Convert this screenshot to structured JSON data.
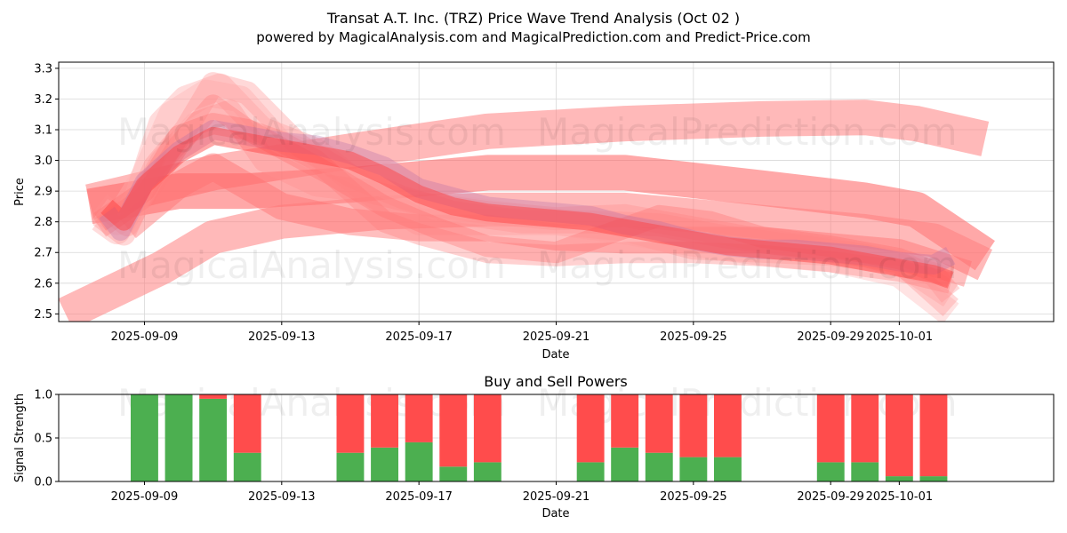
{
  "chart_data": [
    {
      "type": "line",
      "title": "Transat A.T. Inc. (TRZ) Price Wave Trend Analysis (Oct 02 )",
      "subtitle": "powered by MagicalAnalysis.com and MagicalPrediction.com and Predict-Price.com",
      "xlabel": "Date",
      "ylabel": "Price",
      "xlim": [
        -2.5,
        26.5
      ],
      "ylim": [
        2.475,
        3.32
      ],
      "x_ticks": [
        {
          "x": 0,
          "label": "2025-09-09"
        },
        {
          "x": 4,
          "label": "2025-09-13"
        },
        {
          "x": 8,
          "label": "2025-09-17"
        },
        {
          "x": 12,
          "label": "2025-09-21"
        },
        {
          "x": 16,
          "label": "2025-09-25"
        },
        {
          "x": 20,
          "label": "2025-09-29"
        },
        {
          "x": 22,
          "label": "2025-10-01"
        }
      ],
      "y_ticks": [
        2.5,
        2.6,
        2.7,
        2.8,
        2.9,
        3.0,
        3.1,
        3.2,
        3.3
      ],
      "grid": true,
      "series": [
        {
          "name": "upper-band",
          "x": [
            -1.6,
            2,
            6,
            10,
            14,
            18,
            21,
            22.5,
            24.5
          ],
          "values": [
            2.865,
            2.96,
            3.03,
            3.095,
            3.12,
            3.135,
            3.14,
            3.12,
            3.07
          ]
        },
        {
          "name": "middle-band",
          "x": [
            -1.6,
            1,
            3,
            6,
            10,
            14,
            18,
            21,
            22.5,
            24.5
          ],
          "values": [
            2.85,
            2.9,
            2.9,
            2.92,
            2.96,
            2.96,
            2.91,
            2.87,
            2.84,
            2.69
          ]
        },
        {
          "name": "lower-band",
          "x": [
            -2.3,
            0.5,
            2,
            4,
            7,
            10,
            14,
            18,
            21,
            23,
            24.5
          ],
          "values": [
            2.5,
            2.65,
            2.75,
            2.8,
            2.83,
            2.84,
            2.84,
            2.8,
            2.77,
            2.74,
            2.66
          ]
        },
        {
          "name": "mid-lower-band",
          "x": [
            -0.5,
            1,
            2,
            4,
            6,
            8,
            10,
            12,
            14,
            16,
            18,
            20,
            22,
            24
          ],
          "values": [
            2.78,
            2.92,
            2.98,
            2.85,
            2.8,
            2.78,
            2.78,
            2.75,
            2.74,
            2.74,
            2.74,
            2.72,
            2.7,
            2.63
          ]
        },
        {
          "name": "wave-1",
          "x": [
            -1.3,
            -0.8,
            -0.2,
            0.5,
            1.2,
            2.2,
            3.4,
            5,
            6.5,
            8,
            10,
            12,
            14,
            16,
            18,
            20,
            22,
            23.5
          ],
          "values": [
            2.81,
            2.77,
            2.88,
            3.12,
            3.2,
            3.24,
            3.1,
            3.03,
            2.9,
            2.8,
            2.8,
            2.8,
            2.78,
            2.72,
            2.71,
            2.7,
            2.67,
            2.56
          ]
        },
        {
          "name": "wave-2",
          "x": [
            -1.3,
            -0.8,
            0,
            0.8,
            1.8,
            2.8,
            4,
            5.5,
            7,
            8.5,
            10,
            12,
            14,
            16,
            18,
            20,
            22,
            23.5
          ],
          "values": [
            2.84,
            2.8,
            2.95,
            3.15,
            3.22,
            3.2,
            3.05,
            3.0,
            2.92,
            2.85,
            2.83,
            2.8,
            2.77,
            2.73,
            2.7,
            2.68,
            2.63,
            2.5
          ]
        },
        {
          "name": "wave-3",
          "x": [
            -1.3,
            -0.6,
            0.3,
            1.2,
            2,
            3,
            4.5,
            6,
            7.5,
            9,
            11,
            13,
            15,
            17,
            19,
            21,
            23,
            23.5
          ],
          "values": [
            2.82,
            2.76,
            2.98,
            3.1,
            3.25,
            3.22,
            3.05,
            2.95,
            2.88,
            2.83,
            2.8,
            2.8,
            2.79,
            2.75,
            2.72,
            2.69,
            2.63,
            2.56
          ]
        },
        {
          "name": "wave-4",
          "x": [
            -1.3,
            -0.5,
            0.5,
            1.5,
            2.5,
            3.5,
            5,
            6.5,
            8,
            10,
            12,
            14,
            16,
            18,
            20,
            22,
            23.5
          ],
          "values": [
            2.86,
            2.79,
            3.0,
            3.12,
            3.16,
            3.0,
            2.92,
            2.9,
            2.86,
            2.83,
            2.81,
            2.82,
            2.78,
            2.74,
            2.71,
            2.67,
            2.52
          ]
        },
        {
          "name": "wave-5",
          "x": [
            -1.3,
            0,
            1,
            2,
            3,
            4,
            5,
            6,
            7,
            8,
            9,
            10,
            12,
            14,
            16,
            18,
            20,
            22,
            23.5
          ],
          "values": [
            2.78,
            2.88,
            3.05,
            3.18,
            3.1,
            3.06,
            3.0,
            2.9,
            2.8,
            2.76,
            2.73,
            2.7,
            2.69,
            2.7,
            2.7,
            2.69,
            2.67,
            2.64,
            2.6
          ]
        },
        {
          "name": "wave-6",
          "x": [
            -1.3,
            0,
            1,
            2,
            3,
            4,
            5.5,
            7,
            8.5,
            10,
            12,
            13.5,
            15,
            16.5,
            18,
            20,
            22,
            23.5
          ],
          "values": [
            2.8,
            2.9,
            3.08,
            3.12,
            3.1,
            3.04,
            2.95,
            2.85,
            2.78,
            2.72,
            2.7,
            2.76,
            2.82,
            2.8,
            2.75,
            2.72,
            2.68,
            2.62
          ]
        },
        {
          "name": "purple-wave",
          "x": [
            -1.1,
            -0.7,
            0,
            1,
            2,
            3,
            4,
            5,
            6,
            7,
            8,
            9,
            10,
            11,
            12,
            13,
            14,
            15,
            16,
            17,
            18,
            19,
            20,
            21,
            22,
            23,
            23.5
          ],
          "values": [
            2.83,
            2.77,
            2.93,
            3.03,
            3.1,
            3.08,
            3.06,
            3.05,
            3.02,
            2.98,
            2.91,
            2.88,
            2.85,
            2.84,
            2.83,
            2.82,
            2.79,
            2.77,
            2.74,
            2.72,
            2.71,
            2.71,
            2.7,
            2.69,
            2.67,
            2.66,
            2.69
          ]
        },
        {
          "name": "core-line",
          "x": [
            -1.1,
            -0.6,
            0,
            1,
            2,
            3,
            4,
            5,
            6,
            7,
            8,
            9,
            10,
            11,
            12,
            13,
            14,
            15,
            16,
            17,
            18,
            19,
            20,
            21,
            22,
            23,
            23.5
          ],
          "values": [
            2.85,
            2.8,
            2.92,
            3.02,
            3.08,
            3.06,
            3.04,
            3.02,
            3.0,
            2.95,
            2.89,
            2.85,
            2.83,
            2.82,
            2.81,
            2.8,
            2.78,
            2.76,
            2.74,
            2.72,
            2.71,
            2.7,
            2.69,
            2.67,
            2.65,
            2.63,
            2.61
          ]
        }
      ]
    },
    {
      "type": "bar",
      "title": "Buy and Sell Powers",
      "xlabel": "Date",
      "ylabel": "Signal Strength",
      "xlim": [
        -2.5,
        26.5
      ],
      "ylim": [
        0,
        1.0
      ],
      "y_ticks": [
        0.0,
        0.5,
        1.0
      ],
      "x_ticks": [
        {
          "x": 0,
          "label": "2025-09-09"
        },
        {
          "x": 4,
          "label": "2025-09-13"
        },
        {
          "x": 8,
          "label": "2025-09-17"
        },
        {
          "x": 12,
          "label": "2025-09-21"
        },
        {
          "x": 16,
          "label": "2025-09-25"
        },
        {
          "x": 20,
          "label": "2025-09-29"
        },
        {
          "x": 22,
          "label": "2025-10-01"
        }
      ],
      "colors": {
        "buy": "#4caf50",
        "sell": "#ff4c4c"
      },
      "bars": [
        {
          "x": 0,
          "buy": 1.0
        },
        {
          "x": 1,
          "buy": 1.0
        },
        {
          "x": 2,
          "buy": 0.95
        },
        {
          "x": 3,
          "buy": 0.33
        },
        {
          "x": 6,
          "buy": 0.33
        },
        {
          "x": 7,
          "buy": 0.39
        },
        {
          "x": 8,
          "buy": 0.45
        },
        {
          "x": 9,
          "buy": 0.17
        },
        {
          "x": 10,
          "buy": 0.22
        },
        {
          "x": 13,
          "buy": 0.22
        },
        {
          "x": 14,
          "buy": 0.39
        },
        {
          "x": 15,
          "buy": 0.33
        },
        {
          "x": 16,
          "buy": 0.28
        },
        {
          "x": 17,
          "buy": 0.28
        },
        {
          "x": 20,
          "buy": 0.22
        },
        {
          "x": 21,
          "buy": 0.22
        },
        {
          "x": 22,
          "buy": 0.06
        },
        {
          "x": 23,
          "buy": 0.06
        }
      ]
    }
  ],
  "watermarks": [
    "MagicalAnalysis.com",
    "MagicalPrediction.com"
  ]
}
